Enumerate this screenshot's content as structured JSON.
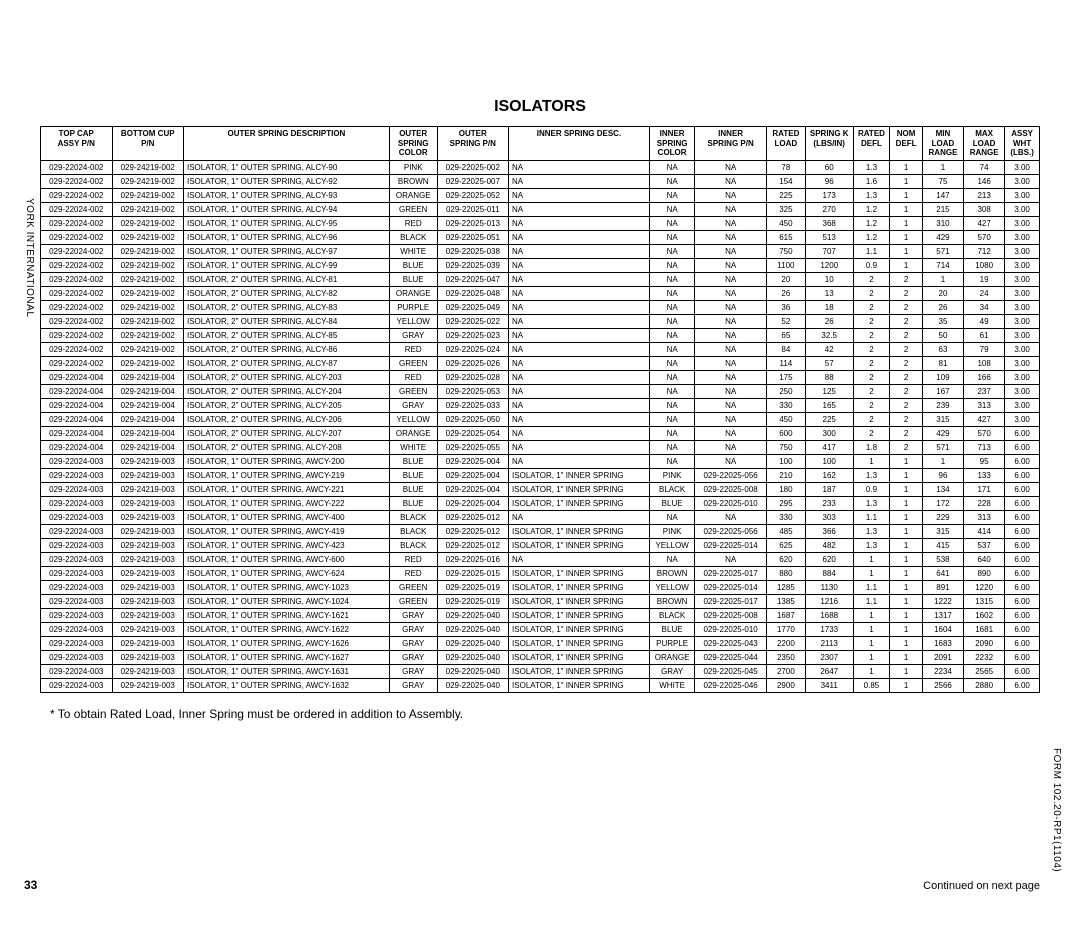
{
  "title": "ISOLATORS",
  "vtext_left": "YORK INTERNATIONAL",
  "vtext_right": "FORM 102.20-RP1(1104)",
  "pagenum": "33",
  "footnote": "* To obtain Rated Load, Inner Spring must be ordered in addition to Assembly.",
  "continued": "Continued on next page",
  "columns": [
    [
      "TOP CAP",
      "ASSY P/N",
      ""
    ],
    [
      "BOTTOM CUP",
      "P/N",
      ""
    ],
    [
      "OUTER SPRING DESCRIPTION",
      "",
      ""
    ],
    [
      "OUTER",
      "SPRING",
      "COLOR"
    ],
    [
      "OUTER",
      "SPRING P/N",
      ""
    ],
    [
      "INNER SPRING DESC.",
      "",
      ""
    ],
    [
      "INNER",
      "SPRING",
      "COLOR"
    ],
    [
      "INNER",
      "SPRING P/N",
      ""
    ],
    [
      "RATED",
      "LOAD",
      ""
    ],
    [
      "SPRING K",
      "(LBS/IN)",
      ""
    ],
    [
      "RATED",
      "DEFL",
      ""
    ],
    [
      "NOM",
      "DEFL",
      ""
    ],
    [
      "MIN",
      "LOAD",
      "RANGE"
    ],
    [
      "MAX",
      "LOAD",
      "RANGE"
    ],
    [
      "ASSY",
      "WHT",
      "(LBS.)"
    ]
  ],
  "rows": [
    [
      "029-22024-002",
      "029-24219-002",
      "ISOLATOR, 1\" OUTER SPRING, ALCY-90",
      "PINK",
      "029-22025-002",
      "NA",
      "NA",
      "NA",
      "78",
      "60",
      "1.3",
      "1",
      "1",
      "74",
      "3.00"
    ],
    [
      "029-22024-002",
      "029-24219-002",
      "ISOLATOR, 1\" OUTER SPRING, ALCY-92",
      "BROWN",
      "029-22025-007",
      "NA",
      "NA",
      "NA",
      "154",
      "96",
      "1.6",
      "1",
      "75",
      "146",
      "3.00"
    ],
    [
      "029-22024-002",
      "029-24219-002",
      "ISOLATOR, 1\" OUTER SPRING, ALCY-93",
      "ORANGE",
      "029-22025-052",
      "NA",
      "NA",
      "NA",
      "225",
      "173",
      "1.3",
      "1",
      "147",
      "213",
      "3.00"
    ],
    [
      "029-22024-002",
      "029-24219-002",
      "ISOLATOR, 1\" OUTER SPRING, ALCY-94",
      "GREEN",
      "029-22025-011",
      "NA",
      "NA",
      "NA",
      "325",
      "270",
      "1.2",
      "1",
      "215",
      "308",
      "3.00"
    ],
    [
      "029-22024-002",
      "029-24219-002",
      "ISOLATOR, 1\" OUTER SPRING, ALCY-95",
      "RED",
      "029-22025-013",
      "NA",
      "NA",
      "NA",
      "450",
      "368",
      "1.2",
      "1",
      "310",
      "427",
      "3.00"
    ],
    [
      "029-22024-002",
      "029-24219-002",
      "ISOLATOR, 1\" OUTER SPRING, ALCY-96",
      "BLACK",
      "029-22025-051",
      "NA",
      "NA",
      "NA",
      "615",
      "513",
      "1.2",
      "1",
      "429",
      "570",
      "3.00"
    ],
    [
      "029-22024-002",
      "029-24219-002",
      "ISOLATOR, 1\" OUTER SPRING, ALCY-97",
      "WHITE",
      "029-22025-038",
      "NA",
      "NA",
      "NA",
      "750",
      "707",
      "1.1",
      "1",
      "571",
      "712",
      "3.00"
    ],
    [
      "029-22024-002",
      "029-24219-002",
      "ISOLATOR, 1\" OUTER SPRING, ALCY-99",
      "BLUE",
      "029-22025-039",
      "NA",
      "NA",
      "NA",
      "1100",
      "1200",
      "0.9",
      "1",
      "714",
      "1080",
      "3.00"
    ],
    [
      "029-22024-002",
      "029-24219-002",
      "ISOLATOR, 2\" OUTER SPRING, ALCY-81",
      "BLUE",
      "029-22025-047",
      "NA",
      "NA",
      "NA",
      "20",
      "10",
      "2",
      "2",
      "1",
      "19",
      "3.00"
    ],
    [
      "029-22024-002",
      "029-24219-002",
      "ISOLATOR, 2\" OUTER SPRING, ALCY-82",
      "ORANGE",
      "029-22025-048",
      "NA",
      "NA",
      "NA",
      "26",
      "13",
      "2",
      "2",
      "20",
      "24",
      "3.00"
    ],
    [
      "029-22024-002",
      "029-24219-002",
      "ISOLATOR, 2\" OUTER SPRING, ALCY-83",
      "PURPLE",
      "029-22025-049",
      "NA",
      "NA",
      "NA",
      "36",
      "18",
      "2",
      "2",
      "26",
      "34",
      "3.00"
    ],
    [
      "029-22024-002",
      "029-24219-002",
      "ISOLATOR, 2\" OUTER SPRING, ALCY-84",
      "YELLOW",
      "029-22025-022",
      "NA",
      "NA",
      "NA",
      "52",
      "26",
      "2",
      "2",
      "35",
      "49",
      "3.00"
    ],
    [
      "029-22024-002",
      "029-24219-002",
      "ISOLATOR, 2\" OUTER SPRING, ALCY-85",
      "GRAY",
      "029-22025-023",
      "NA",
      "NA",
      "NA",
      "65",
      "32.5",
      "2",
      "2",
      "50",
      "61",
      "3.00"
    ],
    [
      "029-22024-002",
      "029-24219-002",
      "ISOLATOR, 2\" OUTER SPRING, ALCY-86",
      "RED",
      "029-22025-024",
      "NA",
      "NA",
      "NA",
      "84",
      "42",
      "2",
      "2",
      "63",
      "79",
      "3.00"
    ],
    [
      "029-22024-002",
      "029-24219-002",
      "ISOLATOR, 2\" OUTER SPRING, ALCY-87",
      "GREEN",
      "029-22025-026",
      "NA",
      "NA",
      "NA",
      "114",
      "57",
      "2",
      "2",
      "81",
      "108",
      "3.00"
    ],
    [
      "029-22024-004",
      "029-24219-004",
      "ISOLATOR, 2\" OUTER SPRING, ALCY-203",
      "RED",
      "029-22025-028",
      "NA",
      "NA",
      "NA",
      "175",
      "88",
      "2",
      "2",
      "109",
      "166",
      "3.00"
    ],
    [
      "029-22024-004",
      "029-24219-004",
      "ISOLATOR, 2\" OUTER SPRING, ALCY-204",
      "GREEN",
      "029-22025-053",
      "NA",
      "NA",
      "NA",
      "250",
      "125",
      "2",
      "2",
      "167",
      "237",
      "3.00"
    ],
    [
      "029-22024-004",
      "029-24219-004",
      "ISOLATOR, 2\" OUTER SPRING, ALCY-205",
      "GRAY",
      "029-22025-033",
      "NA",
      "NA",
      "NA",
      "330",
      "165",
      "2",
      "2",
      "239",
      "313",
      "3.00"
    ],
    [
      "029-22024-004",
      "029-24219-004",
      "ISOLATOR, 2\" OUTER SPRING, ALCY-206",
      "YELLOW",
      "029-22025-050",
      "NA",
      "NA",
      "NA",
      "450",
      "225",
      "2",
      "2",
      "315",
      "427",
      "3.00"
    ],
    [
      "029-22024-004",
      "029-24219-004",
      "ISOLATOR, 2\" OUTER SPRING, ALCY-207",
      "ORANGE",
      "029-22025-054",
      "NA",
      "NA",
      "NA",
      "600",
      "300",
      "2",
      "2",
      "429",
      "570",
      "6.00"
    ],
    [
      "029-22024-004",
      "029-24219-004",
      "ISOLATOR, 2\" OUTER SPRING, ALCY-208",
      "WHITE",
      "029-22025-055",
      "NA",
      "NA",
      "NA",
      "750",
      "417",
      "1.8",
      "2",
      "571",
      "713",
      "6.00"
    ],
    [
      "029-22024-003",
      "029-24219-003",
      "ISOLATOR, 1\" OUTER SPRING, AWCY-200",
      "BLUE",
      "029-22025-004",
      "NA",
      "NA",
      "NA",
      "100",
      "100",
      "1",
      "1",
      "1",
      "95",
      "6.00"
    ],
    [
      "029-22024-003",
      "029-24219-003",
      "ISOLATOR, 1\" OUTER SPRING, AWCY-219",
      "BLUE",
      "029-22025-004",
      "ISOLATOR, 1\" INNER SPRING",
      "PINK",
      "029-22025-056",
      "210",
      "162",
      "1.3",
      "1",
      "96",
      "133",
      "6.00"
    ],
    [
      "029-22024-003",
      "029-24219-003",
      "ISOLATOR, 1\" OUTER SPRING, AWCY-221",
      "BLUE",
      "029-22025-004",
      "ISOLATOR, 1\" INNER SPRING",
      "BLACK",
      "029-22025-008",
      "180",
      "187",
      "0.9",
      "1",
      "134",
      "171",
      "6.00"
    ],
    [
      "029-22024-003",
      "029-24219-003",
      "ISOLATOR, 1\" OUTER SPRING, AWCY-222",
      "BLUE",
      "029-22025-004",
      "ISOLATOR, 1\" INNER SPRING",
      "BLUE",
      "029-22025-010",
      "295",
      "233",
      "1.3",
      "1",
      "172",
      "228",
      "6.00"
    ],
    [
      "029-22024-003",
      "029-24219-003",
      "ISOLATOR, 1\" OUTER SPRING, AWCY-400",
      "BLACK",
      "029-22025-012",
      "NA",
      "NA",
      "NA",
      "330",
      "303",
      "1.1",
      "1",
      "229",
      "313",
      "6.00"
    ],
    [
      "029-22024-003",
      "029-24219-003",
      "ISOLATOR, 1\" OUTER SPRING, AWCY-419",
      "BLACK",
      "029-22025-012",
      "ISOLATOR, 1\" INNER SPRING",
      "PINK",
      "029-22025-056",
      "485",
      "366",
      "1.3",
      "1",
      "315",
      "414",
      "6.00"
    ],
    [
      "029-22024-003",
      "029-24219-003",
      "ISOLATOR, 1\" OUTER SPRING, AWCY-423",
      "BLACK",
      "029-22025-012",
      "ISOLATOR, 1\" INNER SPRING",
      "YELLOW",
      "029-22025-014",
      "625",
      "482",
      "1.3",
      "1",
      "415",
      "537",
      "6.00"
    ],
    [
      "029-22024-003",
      "029-24219-003",
      "ISOLATOR, 1\" OUTER SPRING, AWCY-600",
      "RED",
      "029-22025-016",
      "NA",
      "NA",
      "NA",
      "620",
      "620",
      "1",
      "1",
      "538",
      "640",
      "6.00"
    ],
    [
      "029-22024-003",
      "029-24219-003",
      "ISOLATOR, 1\" OUTER SPRING, AWCY-624",
      "RED",
      "029-22025-015",
      "ISOLATOR, 1\" INNER SPRING",
      "BROWN",
      "029-22025-017",
      "880",
      "884",
      "1",
      "1",
      "641",
      "890",
      "6.00"
    ],
    [
      "029-22024-003",
      "029-24219-003",
      "ISOLATOR, 1\" OUTER SPRING, AWCY-1023",
      "GREEN",
      "029-22025-019",
      "ISOLATOR, 1\" INNER SPRING",
      "YELLOW",
      "029-22025-014",
      "1285",
      "1130",
      "1.1",
      "1",
      "891",
      "1220",
      "6.00"
    ],
    [
      "029-22024-003",
      "029-24219-003",
      "ISOLATOR, 1\" OUTER SPRING, AWCY-1024",
      "GREEN",
      "029-22025-019",
      "ISOLATOR, 1\" INNER SPRING",
      "BROWN",
      "029-22025-017",
      "1385",
      "1216",
      "1.1",
      "1",
      "1222",
      "1315",
      "6.00"
    ],
    [
      "029-22024-003",
      "029-24219-003",
      "ISOLATOR, 1\" OUTER SPRING, AWCY-1621",
      "GRAY",
      "029-22025-040",
      "ISOLATOR, 1\" INNER SPRING",
      "BLACK",
      "029-22025-008",
      "1687",
      "1688",
      "1",
      "1",
      "1317",
      "1602",
      "6.00"
    ],
    [
      "029-22024-003",
      "029-24219-003",
      "ISOLATOR, 1\" OUTER SPRING, AWCY-1622",
      "GRAY",
      "029-22025-040",
      "ISOLATOR, 1\" INNER SPRING",
      "BLUE",
      "029-22025-010",
      "1770",
      "1733",
      "1",
      "1",
      "1604",
      "1681",
      "6.00"
    ],
    [
      "029-22024-003",
      "029-24219-003",
      "ISOLATOR, 1\" OUTER SPRING, AWCY-1626",
      "GRAY",
      "029-22025-040",
      "ISOLATOR, 1\" INNER SPRING",
      "PURPLE",
      "029-22025-043",
      "2200",
      "2113",
      "1",
      "1",
      "1683",
      "2090",
      "6.00"
    ],
    [
      "029-22024-003",
      "029-24219-003",
      "ISOLATOR, 1\" OUTER SPRING, AWCY-1627",
      "GRAY",
      "029-22025-040",
      "ISOLATOR, 1\" INNER SPRING",
      "ORANGE",
      "029-22025-044",
      "2350",
      "2307",
      "1",
      "1",
      "2091",
      "2232",
      "6.00"
    ],
    [
      "029-22024-003",
      "029-24219-003",
      "ISOLATOR, 1\" OUTER SPRING, AWCY-1631",
      "GRAY",
      "029-22025-040",
      "ISOLATOR, 1\" INNER SPRING",
      "GRAY",
      "029-22025-045",
      "2700",
      "2647",
      "1",
      "1",
      "2234",
      "2565",
      "6.00"
    ],
    [
      "029-22024-003",
      "029-24219-003",
      "ISOLATOR, 1\" OUTER SPRING, AWCY-1632",
      "GRAY",
      "029-22025-040",
      "ISOLATOR, 1\" INNER SPRING",
      "WHITE",
      "029-22025-046",
      "2900",
      "3411",
      "0.85",
      "1",
      "2566",
      "2880",
      "6.00"
    ]
  ]
}
